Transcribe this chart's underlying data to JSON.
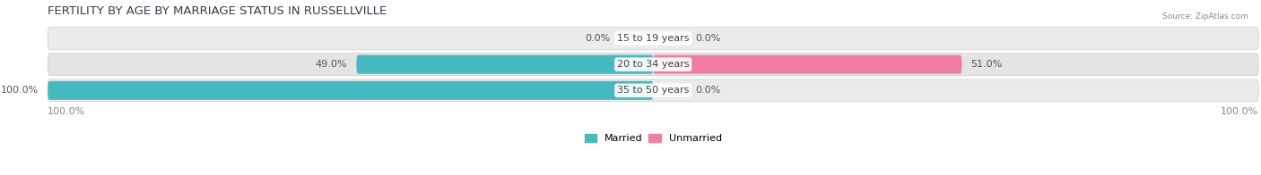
{
  "title": "FERTILITY BY AGE BY MARRIAGE STATUS IN RUSSELLVILLE",
  "source": "Source: ZipAtlas.com",
  "categories": [
    "15 to 19 years",
    "20 to 34 years",
    "35 to 50 years"
  ],
  "married_values": [
    0.0,
    49.0,
    100.0
  ],
  "unmarried_values": [
    0.0,
    51.0,
    0.0
  ],
  "married_color": "#45B8C0",
  "unmarried_color": "#F07EA0",
  "row_colors": [
    "#F0F0F0",
    "#E8E8E8",
    "#E0E0E0"
  ],
  "title_fontsize": 9.5,
  "label_fontsize": 8,
  "value_fontsize": 8,
  "axis_label_color": "#888888",
  "center_label_color": "#444444",
  "value_label_color": "#555555",
  "legend_married": "Married",
  "legend_unmarried": "Unmarried",
  "left_axis_label": "100.0%",
  "right_axis_label": "100.0%"
}
